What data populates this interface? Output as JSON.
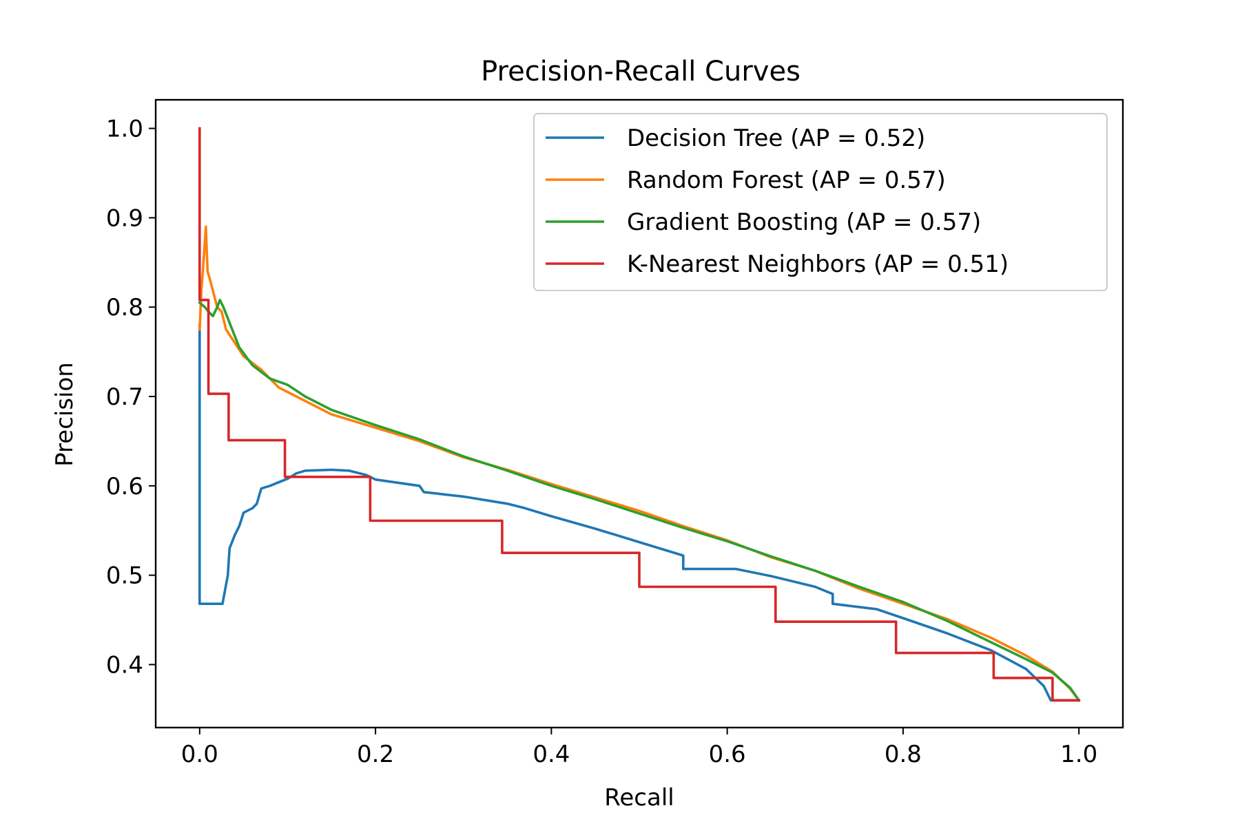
{
  "chart_data": {
    "type": "line",
    "title": "Precision-Recall Curves",
    "xlabel": "Recall",
    "ylabel": "Precision",
    "xlim": [
      -0.05,
      1.05
    ],
    "ylim": [
      0.3295,
      1.032
    ],
    "xticks": [
      0.0,
      0.2,
      0.4,
      0.6,
      0.8,
      1.0
    ],
    "xtick_labels": [
      "0.0",
      "0.2",
      "0.4",
      "0.6",
      "0.8",
      "1.0"
    ],
    "yticks": [
      0.4,
      0.5,
      0.6,
      0.7,
      0.8,
      0.9,
      1.0
    ],
    "ytick_labels": [
      "0.4",
      "0.5",
      "0.6",
      "0.7",
      "0.8",
      "0.9",
      "1.0"
    ],
    "grid": false,
    "legend_position": "upper right",
    "series": [
      {
        "name": "Decision Tree (AP = 0.52)",
        "color": "#1f77b4",
        "step": false,
        "points": [
          [
            0.0,
            0.78
          ],
          [
            0.0,
            0.468
          ],
          [
            0.026,
            0.468
          ],
          [
            0.032,
            0.5
          ],
          [
            0.034,
            0.53
          ],
          [
            0.04,
            0.545
          ],
          [
            0.045,
            0.555
          ],
          [
            0.05,
            0.57
          ],
          [
            0.06,
            0.575
          ],
          [
            0.065,
            0.58
          ],
          [
            0.07,
            0.597
          ],
          [
            0.08,
            0.6
          ],
          [
            0.09,
            0.604
          ],
          [
            0.1,
            0.608
          ],
          [
            0.11,
            0.614
          ],
          [
            0.12,
            0.617
          ],
          [
            0.15,
            0.618
          ],
          [
            0.17,
            0.617
          ],
          [
            0.19,
            0.612
          ],
          [
            0.2,
            0.607
          ],
          [
            0.25,
            0.6
          ],
          [
            0.255,
            0.593
          ],
          [
            0.3,
            0.588
          ],
          [
            0.35,
            0.58
          ],
          [
            0.37,
            0.575
          ],
          [
            0.4,
            0.566
          ],
          [
            0.45,
            0.552
          ],
          [
            0.5,
            0.537
          ],
          [
            0.55,
            0.522
          ],
          [
            0.55,
            0.507
          ],
          [
            0.61,
            0.507
          ],
          [
            0.65,
            0.499
          ],
          [
            0.7,
            0.487
          ],
          [
            0.72,
            0.479
          ],
          [
            0.72,
            0.468
          ],
          [
            0.77,
            0.462
          ],
          [
            0.8,
            0.452
          ],
          [
            0.85,
            0.435
          ],
          [
            0.9,
            0.416
          ],
          [
            0.94,
            0.395
          ],
          [
            0.96,
            0.376
          ],
          [
            0.968,
            0.36
          ],
          [
            1.0,
            0.36
          ]
        ]
      },
      {
        "name": "Random Forest (AP = 0.57)",
        "color": "#ff7f0e",
        "step": false,
        "points": [
          [
            0.0,
            0.775
          ],
          [
            0.002,
            0.82
          ],
          [
            0.004,
            0.845
          ],
          [
            0.007,
            0.89
          ],
          [
            0.009,
            0.84
          ],
          [
            0.012,
            0.83
          ],
          [
            0.016,
            0.815
          ],
          [
            0.02,
            0.8
          ],
          [
            0.025,
            0.795
          ],
          [
            0.03,
            0.775
          ],
          [
            0.04,
            0.76
          ],
          [
            0.05,
            0.745
          ],
          [
            0.07,
            0.73
          ],
          [
            0.09,
            0.71
          ],
          [
            0.11,
            0.7
          ],
          [
            0.15,
            0.68
          ],
          [
            0.2,
            0.665
          ],
          [
            0.25,
            0.65
          ],
          [
            0.3,
            0.632
          ],
          [
            0.35,
            0.618
          ],
          [
            0.4,
            0.602
          ],
          [
            0.45,
            0.587
          ],
          [
            0.5,
            0.572
          ],
          [
            0.55,
            0.555
          ],
          [
            0.6,
            0.539
          ],
          [
            0.65,
            0.52
          ],
          [
            0.7,
            0.505
          ],
          [
            0.75,
            0.485
          ],
          [
            0.8,
            0.468
          ],
          [
            0.85,
            0.451
          ],
          [
            0.9,
            0.43
          ],
          [
            0.94,
            0.41
          ],
          [
            0.97,
            0.392
          ],
          [
            0.99,
            0.373
          ],
          [
            1.0,
            0.36
          ]
        ]
      },
      {
        "name": "Gradient Boosting (AP = 0.57)",
        "color": "#2ca02c",
        "step": false,
        "points": [
          [
            0.0,
            0.805
          ],
          [
            0.006,
            0.8
          ],
          [
            0.01,
            0.795
          ],
          [
            0.015,
            0.79
          ],
          [
            0.02,
            0.8
          ],
          [
            0.023,
            0.808
          ],
          [
            0.027,
            0.8
          ],
          [
            0.035,
            0.78
          ],
          [
            0.045,
            0.755
          ],
          [
            0.06,
            0.735
          ],
          [
            0.08,
            0.72
          ],
          [
            0.1,
            0.713
          ],
          [
            0.12,
            0.7
          ],
          [
            0.15,
            0.685
          ],
          [
            0.2,
            0.668
          ],
          [
            0.25,
            0.652
          ],
          [
            0.3,
            0.633
          ],
          [
            0.35,
            0.617
          ],
          [
            0.4,
            0.6
          ],
          [
            0.45,
            0.585
          ],
          [
            0.5,
            0.569
          ],
          [
            0.55,
            0.553
          ],
          [
            0.6,
            0.538
          ],
          [
            0.65,
            0.521
          ],
          [
            0.7,
            0.505
          ],
          [
            0.75,
            0.487
          ],
          [
            0.8,
            0.47
          ],
          [
            0.85,
            0.449
          ],
          [
            0.9,
            0.425
          ],
          [
            0.94,
            0.406
          ],
          [
            0.97,
            0.391
          ],
          [
            0.99,
            0.374
          ],
          [
            1.0,
            0.36
          ]
        ]
      },
      {
        "name": "K-Nearest Neighbors (AP = 0.51)",
        "color": "#d62728",
        "step": true,
        "points": [
          [
            0.0,
            1.0
          ],
          [
            0.0,
            0.808
          ],
          [
            0.01,
            0.808
          ],
          [
            0.01,
            0.703
          ],
          [
            0.033,
            0.703
          ],
          [
            0.033,
            0.651
          ],
          [
            0.097,
            0.651
          ],
          [
            0.097,
            0.61
          ],
          [
            0.194,
            0.61
          ],
          [
            0.194,
            0.561
          ],
          [
            0.344,
            0.561
          ],
          [
            0.344,
            0.525
          ],
          [
            0.5,
            0.525
          ],
          [
            0.5,
            0.487
          ],
          [
            0.655,
            0.487
          ],
          [
            0.655,
            0.448
          ],
          [
            0.792,
            0.448
          ],
          [
            0.792,
            0.413
          ],
          [
            0.903,
            0.413
          ],
          [
            0.903,
            0.385
          ],
          [
            0.97,
            0.385
          ],
          [
            0.97,
            0.36
          ],
          [
            1.0,
            0.36
          ]
        ]
      }
    ]
  }
}
